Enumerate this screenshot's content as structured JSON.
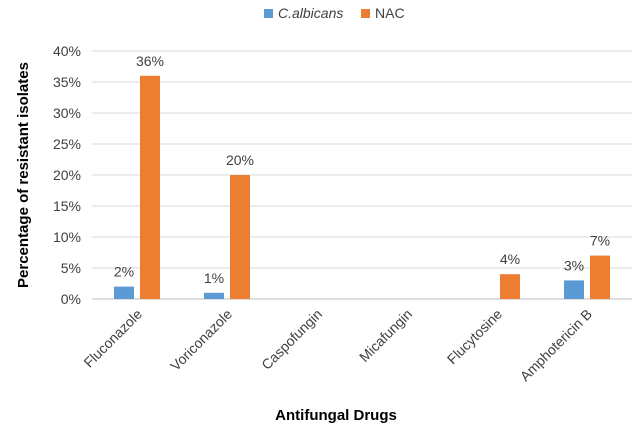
{
  "chart_data": {
    "type": "bar",
    "categories": [
      "Fluconazole",
      "Voriconazole",
      "Caspofungin",
      "Micafungin",
      "Flucytosine",
      "Amphotericin B"
    ],
    "series": [
      {
        "name": "C.albicans",
        "color": "#5b9bd5",
        "values": [
          2,
          1,
          0,
          0,
          0,
          3
        ],
        "labels": [
          "2%",
          "1%",
          "",
          "",
          "",
          "3%"
        ]
      },
      {
        "name": "NAC",
        "color": "#ed7d31",
        "values": [
          36,
          20,
          0,
          0,
          4,
          7
        ],
        "labels": [
          "36%",
          "20%",
          "",
          "",
          "4%",
          "7%"
        ]
      }
    ],
    "xlabel": "Antifungal Drugs",
    "ylabel": "Percentage of resistant isolates",
    "ylim": [
      0,
      40
    ],
    "yticks": [
      0,
      5,
      10,
      15,
      20,
      25,
      30,
      35,
      40
    ],
    "ytick_labels": [
      "0%",
      "5%",
      "10%",
      "15%",
      "20%",
      "25%",
      "30%",
      "35%",
      "40%"
    ],
    "grid": true,
    "legend_position": "top"
  }
}
